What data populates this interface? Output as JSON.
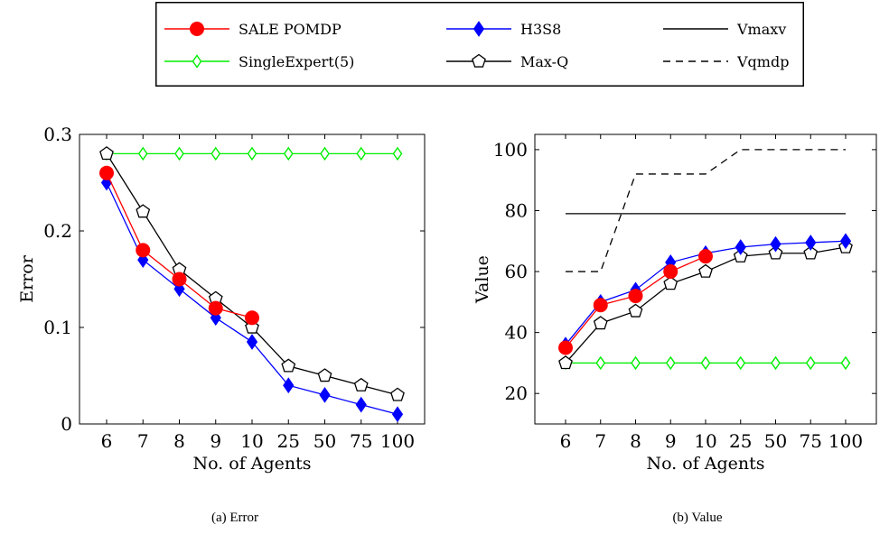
{
  "legend": [
    {
      "name": "SALE POMDP",
      "color": "#ff0000",
      "marker": "circle",
      "dash": "solid"
    },
    {
      "name": "H3S8",
      "color": "#0000ff",
      "marker": "diamond",
      "dash": "solid"
    },
    {
      "name": "Vmaxv",
      "color": "#000000",
      "marker": "none",
      "dash": "solid"
    },
    {
      "name": "SingleExpert(5)",
      "color": "#00ee00",
      "marker": "diamond-open",
      "dash": "solid"
    },
    {
      "name": "Max-Q",
      "color": "#000000",
      "marker": "pentagon-open",
      "dash": "solid"
    },
    {
      "name": "Vqmdp",
      "color": "#000000",
      "marker": "none",
      "dash": "dashed"
    }
  ],
  "captions": {
    "a": "(a) Error",
    "b": "(b) Value"
  },
  "chart_data": [
    {
      "type": "line",
      "xlabel": "No. of Agents",
      "ylabel": "Error",
      "categories": [
        "6",
        "7",
        "8",
        "9",
        "10",
        "25",
        "50",
        "75",
        "100"
      ],
      "ylim": [
        0,
        0.3
      ],
      "yticks": [
        "0",
        "0.1",
        "0.2",
        "0.3"
      ],
      "ytick_values": [
        0,
        0.1,
        0.2,
        0.3
      ],
      "series": [
        {
          "name": "SingleExpert(5)",
          "color": "#00ee00",
          "marker": "diamond-open",
          "values": [
            0.28,
            0.28,
            0.28,
            0.28,
            0.28,
            0.28,
            0.28,
            0.28,
            0.28
          ]
        },
        {
          "name": "Max-Q",
          "color": "#000000",
          "marker": "pentagon-open",
          "values": [
            0.28,
            0.22,
            0.16,
            0.13,
            0.1,
            0.06,
            0.05,
            0.04,
            0.03
          ]
        },
        {
          "name": "H3S8",
          "color": "#0000ff",
          "marker": "diamond",
          "values": [
            0.25,
            0.17,
            0.14,
            0.11,
            0.085,
            0.04,
            0.03,
            0.02,
            0.01
          ]
        },
        {
          "name": "SALE POMDP",
          "color": "#ff0000",
          "marker": "circle",
          "values": [
            0.26,
            0.18,
            0.15,
            0.12,
            0.11,
            null,
            null,
            null,
            null
          ]
        }
      ]
    },
    {
      "type": "line",
      "xlabel": "No. of Agents",
      "ylabel": "Value",
      "categories": [
        "6",
        "7",
        "8",
        "9",
        "10",
        "25",
        "50",
        "75",
        "100"
      ],
      "ylim": [
        10,
        105
      ],
      "yticks": [
        "20",
        "40",
        "60",
        "80",
        "100"
      ],
      "ytick_values": [
        20,
        40,
        60,
        80,
        100
      ],
      "series": [
        {
          "name": "Vqmdp",
          "color": "#000000",
          "marker": "none",
          "dash": "dashed",
          "values": [
            60,
            60,
            92,
            92,
            92,
            100,
            100,
            100,
            100
          ]
        },
        {
          "name": "Vmaxv",
          "color": "#000000",
          "marker": "none",
          "values": [
            79,
            79,
            79,
            79,
            79,
            79,
            79,
            79,
            79
          ]
        },
        {
          "name": "SingleExpert(5)",
          "color": "#00ee00",
          "marker": "diamond-open",
          "values": [
            30,
            30,
            30,
            30,
            30,
            30,
            30,
            30,
            30
          ]
        },
        {
          "name": "Max-Q",
          "color": "#000000",
          "marker": "pentagon-open",
          "values": [
            30,
            43,
            47,
            56,
            60,
            65,
            66,
            66,
            68
          ]
        },
        {
          "name": "H3S8",
          "color": "#0000ff",
          "marker": "diamond",
          "values": [
            36,
            50,
            54,
            63,
            66,
            68,
            69,
            69.5,
            70
          ]
        },
        {
          "name": "SALE POMDP",
          "color": "#ff0000",
          "marker": "circle",
          "values": [
            35,
            49,
            52,
            60,
            65,
            null,
            null,
            null,
            null
          ]
        }
      ]
    }
  ]
}
